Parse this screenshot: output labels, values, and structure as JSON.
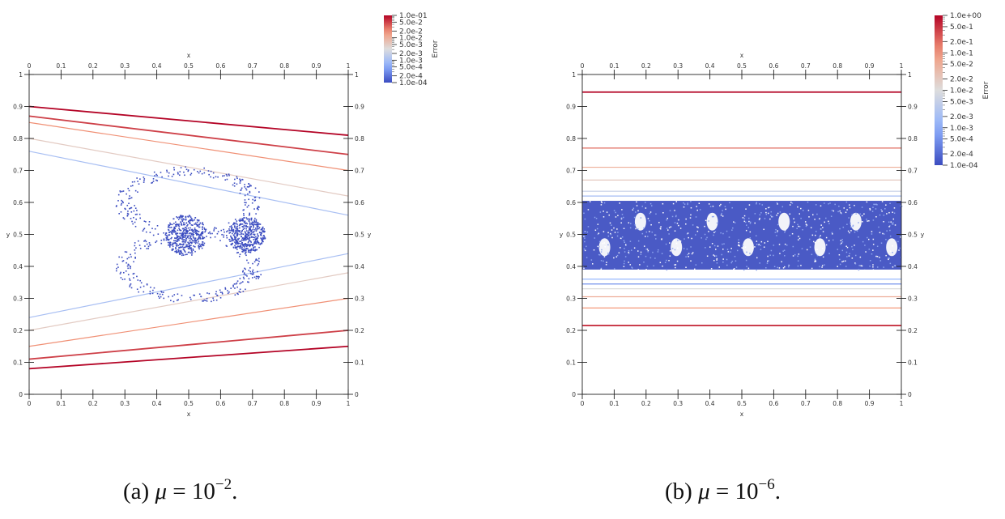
{
  "figure": {
    "panels": [
      {
        "id": "a",
        "caption": {
          "prefix": "(a) ",
          "symbol": "μ",
          "eq": " = 10",
          "exp": "−2",
          "suffix": "."
        },
        "colorbar": {
          "title": "Error",
          "labels": [
            "1.0e-01",
            "5.0e-2",
            "2.0e-2",
            "1.0e-2",
            "5.0e-3",
            "2.0e-3",
            "1.0e-3",
            "5.0e-4",
            "2.0e-4",
            "1.0e-04"
          ]
        }
      },
      {
        "id": "b",
        "caption": {
          "prefix": "(b) ",
          "symbol": "μ",
          "eq": " = 10",
          "exp": "−6",
          "suffix": "."
        },
        "colorbar": {
          "title": "Error",
          "labels": [
            "1.0e+00",
            "5.0e-1",
            "2.0e-1",
            "1.0e-1",
            "5.0e-2",
            "2.0e-2",
            "1.0e-2",
            "5.0e-3",
            "2.0e-3",
            "1.0e-3",
            "5.0e-4",
            "2.0e-4",
            "1.0e-04"
          ]
        }
      }
    ]
  },
  "chart_data": [
    {
      "type": "scatter",
      "title": "",
      "xlabel": "x",
      "ylabel": "y",
      "xlim": [
        0,
        1
      ],
      "ylim": [
        0,
        1
      ],
      "x_ticks": [
        "0",
        "0.1",
        "0.2",
        "0.3",
        "0.4",
        "0.5",
        "0.6",
        "0.7",
        "0.8",
        "0.9",
        "1"
      ],
      "y_ticks": [
        "0",
        "0.1",
        "0.2",
        "0.3",
        "0.4",
        "0.5",
        "0.6",
        "0.7",
        "0.8",
        "0.9",
        "1"
      ],
      "colorbar_range": [
        0.0001,
        0.1
      ],
      "series": [
        {
          "name": "converging trajectory",
          "start": [
            0,
            0.9
          ],
          "end": [
            1,
            0.81
          ],
          "error": 0.1
        },
        {
          "name": "converging trajectory",
          "start": [
            0,
            0.87
          ],
          "end": [
            1,
            0.75
          ],
          "error": 0.05
        },
        {
          "name": "converging trajectory",
          "start": [
            0,
            0.85
          ],
          "end": [
            1,
            0.7
          ],
          "error": 0.02
        },
        {
          "name": "converging trajectory",
          "start": [
            0,
            0.8
          ],
          "end": [
            1,
            0.62
          ],
          "error": 0.005
        },
        {
          "name": "converging trajectory",
          "start": [
            0,
            0.76
          ],
          "end": [
            1,
            0.56
          ],
          "error": 0.001
        },
        {
          "name": "converging trajectory",
          "start": [
            0,
            0.24
          ],
          "end": [
            1,
            0.44
          ],
          "error": 0.001
        },
        {
          "name": "converging trajectory",
          "start": [
            0,
            0.2
          ],
          "end": [
            1,
            0.38
          ],
          "error": 0.005
        },
        {
          "name": "converging trajectory",
          "start": [
            0,
            0.15
          ],
          "end": [
            1,
            0.3
          ],
          "error": 0.02
        },
        {
          "name": "converging trajectory",
          "start": [
            0,
            0.11
          ],
          "end": [
            1,
            0.2
          ],
          "error": 0.05
        },
        {
          "name": "converging trajectory",
          "start": [
            0,
            0.08
          ],
          "end": [
            1,
            0.15
          ],
          "error": 0.1
        },
        {
          "name": "island",
          "center": [
            0.49,
            0.5
          ],
          "radius": [
            0.065,
            0.065
          ],
          "error": 0.0001
        },
        {
          "name": "island",
          "center": [
            0.68,
            0.5
          ],
          "radius": [
            0.06,
            0.055
          ],
          "error": 0.0001
        },
        {
          "name": "separatrix",
          "center": [
            0.5,
            0.6
          ],
          "radius": [
            0.2,
            0.1
          ],
          "error": 0.0001
        },
        {
          "name": "separatrix",
          "center": [
            0.5,
            0.4
          ],
          "radius": [
            0.2,
            0.1
          ],
          "error": 0.0001
        }
      ]
    },
    {
      "type": "scatter",
      "title": "",
      "xlabel": "x",
      "ylabel": "y",
      "xlim": [
        0,
        1
      ],
      "ylim": [
        0,
        1
      ],
      "x_ticks": [
        "0",
        "0.1",
        "0.2",
        "0.3",
        "0.4",
        "0.5",
        "0.6",
        "0.7",
        "0.8",
        "0.9",
        "1"
      ],
      "y_ticks": [
        "0",
        "0.1",
        "0.2",
        "0.3",
        "0.4",
        "0.5",
        "0.6",
        "0.7",
        "0.8",
        "0.9",
        "1"
      ],
      "colorbar_range": [
        0.0001,
        1
      ],
      "series": [
        {
          "name": "horizontal trajectory",
          "y": 0.945,
          "error": 1.0
        },
        {
          "name": "horizontal trajectory",
          "y": 0.77,
          "error": 0.2
        },
        {
          "name": "horizontal trajectory",
          "y": 0.71,
          "error": 0.05
        },
        {
          "name": "horizontal trajectory",
          "y": 0.67,
          "error": 0.02
        },
        {
          "name": "horizontal trajectory",
          "y": 0.635,
          "error": 0.005
        },
        {
          "name": "horizontal trajectory",
          "y": 0.62,
          "error": 0.002
        },
        {
          "name": "horizontal trajectory",
          "y": 0.36,
          "error": 0.001
        },
        {
          "name": "horizontal trajectory",
          "y": 0.345,
          "error": 0.0005
        },
        {
          "name": "horizontal trajectory",
          "y": 0.33,
          "error": 0.01
        },
        {
          "name": "horizontal trajectory",
          "y": 0.305,
          "error": 0.05
        },
        {
          "name": "horizontal trajectory",
          "y": 0.27,
          "error": 0.1
        },
        {
          "name": "horizontal trajectory",
          "y": 0.215,
          "error": 0.5
        },
        {
          "name": "chaotic band",
          "y_range": [
            0.39,
            0.605
          ],
          "error": 0.0001
        }
      ]
    }
  ]
}
